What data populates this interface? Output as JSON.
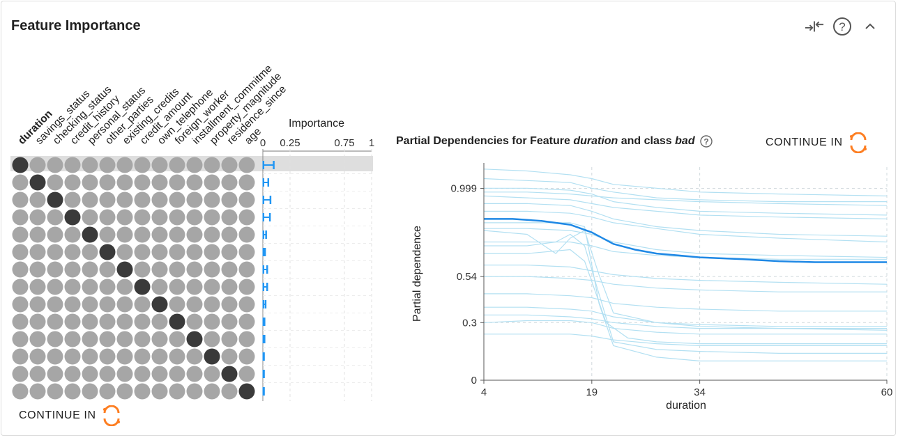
{
  "panel": {
    "title": "Feature Importance",
    "icons": [
      "compress-arrows-icon",
      "help-circle-icon",
      "chevron-up-icon"
    ],
    "continue_label": "CONTINUE IN"
  },
  "pd_panel": {
    "title_prefix": "Partial Dependencies for Feature ",
    "feature": "duration",
    "title_middle": " and class ",
    "class_name": "bad",
    "continue_label": "CONTINUE IN"
  },
  "colors": {
    "accent": "#2196f3",
    "pd_main": "#1e88e5",
    "pd_ice": "#b3e0f2",
    "dot_dark": "#3a3a3a",
    "dot_light": "#a6a6a6",
    "knime_orange": "#fd7e22"
  },
  "chart_data": [
    {
      "type": "matrix",
      "title": "",
      "features": [
        "duration",
        "savings_status",
        "checking_status",
        "credit_history",
        "personal_status",
        "other_parties",
        "existing_credits",
        "credit_amount",
        "own_telephone",
        "foreign_worker",
        "installment_commitme",
        "property_magnitude",
        "residence_since",
        "age"
      ],
      "selected_feature": "duration",
      "importance_axis": {
        "title": "Importance",
        "ticks": [
          0,
          0.25,
          0.75,
          1
        ],
        "tick_labels": [
          "0",
          "0.25",
          "0.75",
          "1"
        ],
        "range": [
          0,
          1
        ]
      },
      "importance": [
        {
          "low": 0.005,
          "high": 0.1
        },
        {
          "low": 0.005,
          "high": 0.05
        },
        {
          "low": 0.005,
          "high": 0.07
        },
        {
          "low": 0.005,
          "high": 0.065
        },
        {
          "low": 0.005,
          "high": 0.03
        },
        {
          "low": 0.005,
          "high": 0.02
        },
        {
          "low": 0.005,
          "high": 0.04
        },
        {
          "low": 0.005,
          "high": 0.04
        },
        {
          "low": 0.005,
          "high": 0.025
        },
        {
          "low": 0.005,
          "high": 0.015
        },
        {
          "low": 0.005,
          "high": 0.015
        },
        {
          "low": 0.005,
          "high": 0.01
        },
        {
          "low": 0.005,
          "high": 0.01
        },
        {
          "low": 0.005,
          "high": 0.01
        }
      ]
    },
    {
      "type": "line",
      "title": "Partial Dependencies for Feature duration and class bad",
      "xlabel": "duration",
      "ylabel": "Partial dependence",
      "xlim": [
        4,
        60
      ],
      "ylim": [
        0,
        1.11
      ],
      "xticks": [
        4,
        19,
        34,
        60
      ],
      "yticks": [
        0,
        0.3,
        0.54,
        0.999
      ],
      "ytick_labels": [
        "0",
        "0.3",
        "0.54",
        "0.999"
      ],
      "grid": true,
      "series": [
        {
          "name": "partial dependence",
          "x": [
            4,
            8,
            12,
            16,
            19,
            22,
            25,
            28,
            31,
            34,
            40,
            45,
            50,
            55,
            60
          ],
          "y": [
            0.84,
            0.84,
            0.83,
            0.81,
            0.77,
            0.71,
            0.68,
            0.66,
            0.65,
            0.64,
            0.63,
            0.62,
            0.615,
            0.615,
            0.615
          ]
        },
        {
          "name": "ice-1",
          "x": [
            4,
            10,
            16,
            19,
            22,
            28,
            34,
            45,
            60
          ],
          "y": [
            1.1,
            1.09,
            1.07,
            1.05,
            1.02,
            1.0,
            0.98,
            0.97,
            0.96
          ]
        },
        {
          "name": "ice-2",
          "x": [
            4,
            10,
            16,
            19,
            22,
            28,
            34,
            45,
            60
          ],
          "y": [
            1.05,
            1.04,
            1.03,
            1.0,
            0.98,
            0.95,
            0.94,
            0.93,
            0.93
          ]
        },
        {
          "name": "ice-3",
          "x": [
            4,
            10,
            16,
            19,
            22,
            28,
            34,
            45,
            60
          ],
          "y": [
            1.0,
            1.0,
            0.99,
            0.97,
            0.93,
            0.9,
            0.88,
            0.87,
            0.86
          ]
        },
        {
          "name": "ice-4",
          "x": [
            4,
            10,
            16,
            19,
            22,
            28,
            34,
            45,
            60
          ],
          "y": [
            0.96,
            0.95,
            0.94,
            0.92,
            0.9,
            0.88,
            0.86,
            0.85,
            0.84
          ]
        },
        {
          "name": "ice-5",
          "x": [
            4,
            10,
            16,
            19,
            22,
            28,
            34,
            45,
            60
          ],
          "y": [
            0.92,
            0.92,
            0.91,
            0.88,
            0.84,
            0.8,
            0.78,
            0.76,
            0.75
          ]
        },
        {
          "name": "ice-6",
          "x": [
            4,
            10,
            16,
            19,
            22,
            28,
            34,
            45,
            60
          ],
          "y": [
            0.88,
            0.88,
            0.87,
            0.85,
            0.82,
            0.79,
            0.76,
            0.74,
            0.72
          ]
        },
        {
          "name": "ice-7",
          "x": [
            4,
            10,
            16,
            19,
            22,
            28,
            34,
            45,
            60
          ],
          "y": [
            0.79,
            0.79,
            0.78,
            0.76,
            0.72,
            0.68,
            0.66,
            0.65,
            0.64
          ]
        },
        {
          "name": "ice-8",
          "x": [
            4,
            10,
            16,
            19,
            22,
            28,
            34,
            45,
            60
          ],
          "y": [
            0.72,
            0.72,
            0.72,
            0.7,
            0.67,
            0.65,
            0.64,
            0.63,
            0.63
          ]
        },
        {
          "name": "ice-9",
          "x": [
            4,
            10,
            14,
            16,
            18,
            20,
            22,
            28,
            34,
            45,
            60
          ],
          "y": [
            0.78,
            0.76,
            0.66,
            0.74,
            0.78,
            0.55,
            0.35,
            0.3,
            0.28,
            0.27,
            0.26
          ]
        },
        {
          "name": "ice-10",
          "x": [
            4,
            10,
            14,
            16,
            18,
            20,
            22,
            28,
            34,
            45,
            60
          ],
          "y": [
            0.7,
            0.7,
            0.72,
            0.76,
            0.7,
            0.45,
            0.2,
            0.16,
            0.15,
            0.14,
            0.14
          ]
        },
        {
          "name": "ice-11",
          "x": [
            4,
            10,
            16,
            19,
            22,
            28,
            34,
            45,
            60
          ],
          "y": [
            0.6,
            0.6,
            0.59,
            0.57,
            0.55,
            0.53,
            0.52,
            0.51,
            0.5
          ]
        },
        {
          "name": "ice-12",
          "x": [
            4,
            10,
            16,
            19,
            22,
            28,
            34,
            45,
            60
          ],
          "y": [
            0.54,
            0.54,
            0.53,
            0.52,
            0.5,
            0.48,
            0.47,
            0.46,
            0.46
          ]
        },
        {
          "name": "ice-13",
          "x": [
            4,
            10,
            16,
            19,
            22,
            28,
            34,
            45,
            60
          ],
          "y": [
            0.45,
            0.45,
            0.44,
            0.43,
            0.4,
            0.38,
            0.37,
            0.36,
            0.36
          ]
        },
        {
          "name": "ice-14",
          "x": [
            4,
            10,
            16,
            19,
            22,
            28,
            34,
            45,
            60
          ],
          "y": [
            0.38,
            0.38,
            0.37,
            0.36,
            0.33,
            0.3,
            0.29,
            0.28,
            0.28
          ]
        },
        {
          "name": "ice-15",
          "x": [
            4,
            10,
            16,
            19,
            22,
            28,
            34,
            45,
            60
          ],
          "y": [
            0.3,
            0.31,
            0.31,
            0.3,
            0.27,
            0.25,
            0.24,
            0.24,
            0.24
          ]
        },
        {
          "name": "ice-16",
          "x": [
            4,
            10,
            16,
            19,
            22,
            28,
            34,
            45,
            60
          ],
          "y": [
            0.24,
            0.24,
            0.24,
            0.23,
            0.21,
            0.19,
            0.18,
            0.18,
            0.18
          ]
        },
        {
          "name": "ice-17",
          "x": [
            4,
            10,
            16,
            18,
            20,
            22,
            28,
            34,
            45,
            60
          ],
          "y": [
            0.82,
            0.82,
            0.82,
            0.8,
            0.4,
            0.18,
            0.12,
            0.1,
            0.1,
            0.1
          ]
        },
        {
          "name": "ice-18",
          "x": [
            4,
            10,
            16,
            18,
            21,
            24,
            28,
            34,
            45,
            60
          ],
          "y": [
            0.66,
            0.66,
            0.68,
            0.62,
            0.3,
            0.22,
            0.2,
            0.19,
            0.19,
            0.19
          ]
        },
        {
          "name": "ice-19",
          "x": [
            4,
            10,
            16,
            19,
            22,
            28,
            34,
            45,
            60
          ],
          "y": [
            0.34,
            0.34,
            0.33,
            0.32,
            0.3,
            0.28,
            0.27,
            0.27,
            0.27
          ]
        },
        {
          "name": "ice-20",
          "x": [
            4,
            10,
            16,
            19,
            22,
            28,
            34,
            45,
            60
          ],
          "y": [
            0.98,
            0.98,
            0.97,
            0.96,
            0.95,
            0.94,
            0.93,
            0.92,
            0.91
          ]
        }
      ]
    }
  ]
}
